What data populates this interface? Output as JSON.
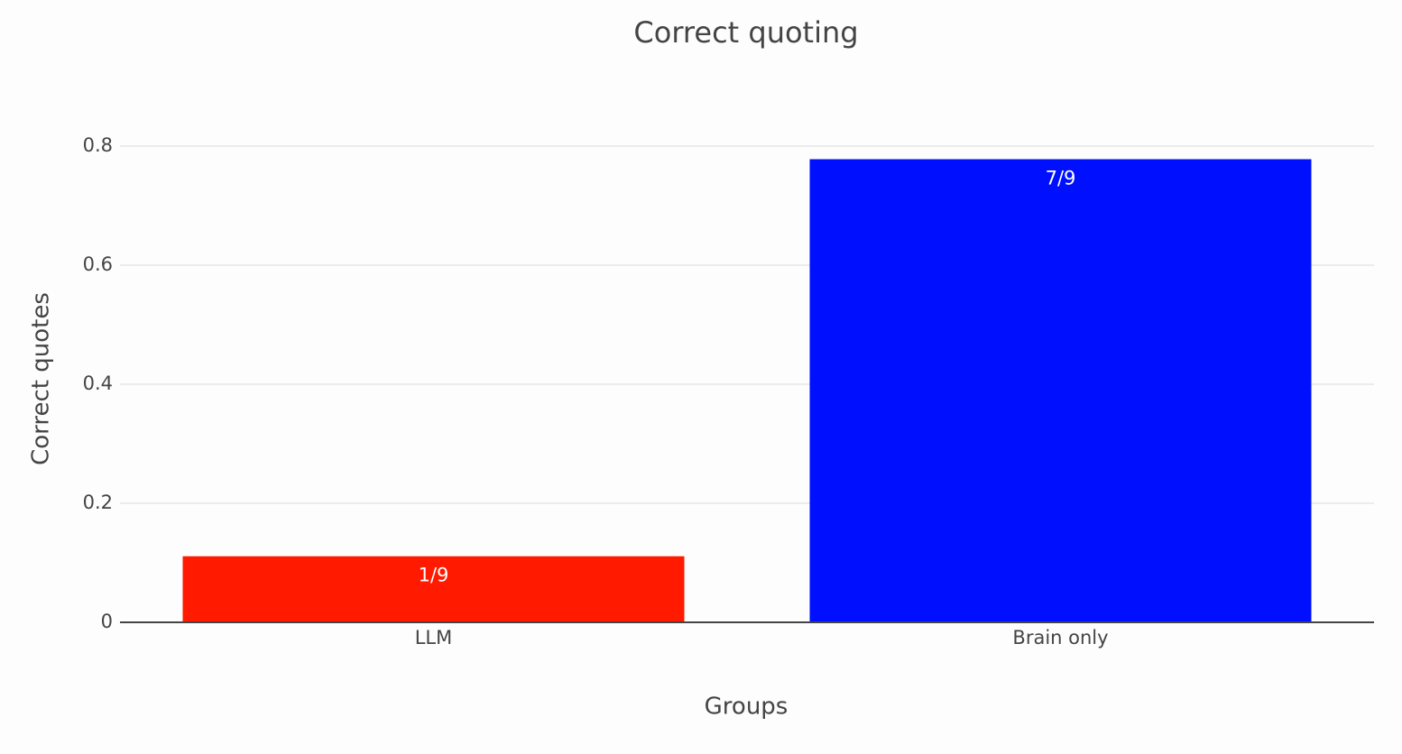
{
  "chart_data": {
    "type": "bar",
    "title": "Correct quoting",
    "x_label": "Groups",
    "y_label": "Correct quotes",
    "categories": [
      "LLM",
      "Brain only"
    ],
    "values": [
      0.111,
      0.778
    ],
    "value_labels": [
      "1/9",
      "7/9"
    ],
    "colors": [
      "#ff1a00",
      "#0010ff"
    ],
    "ylim": [
      0,
      0.82
    ],
    "yticks": [
      0,
      0.2,
      0.4,
      0.6,
      0.8
    ],
    "grid": true
  }
}
